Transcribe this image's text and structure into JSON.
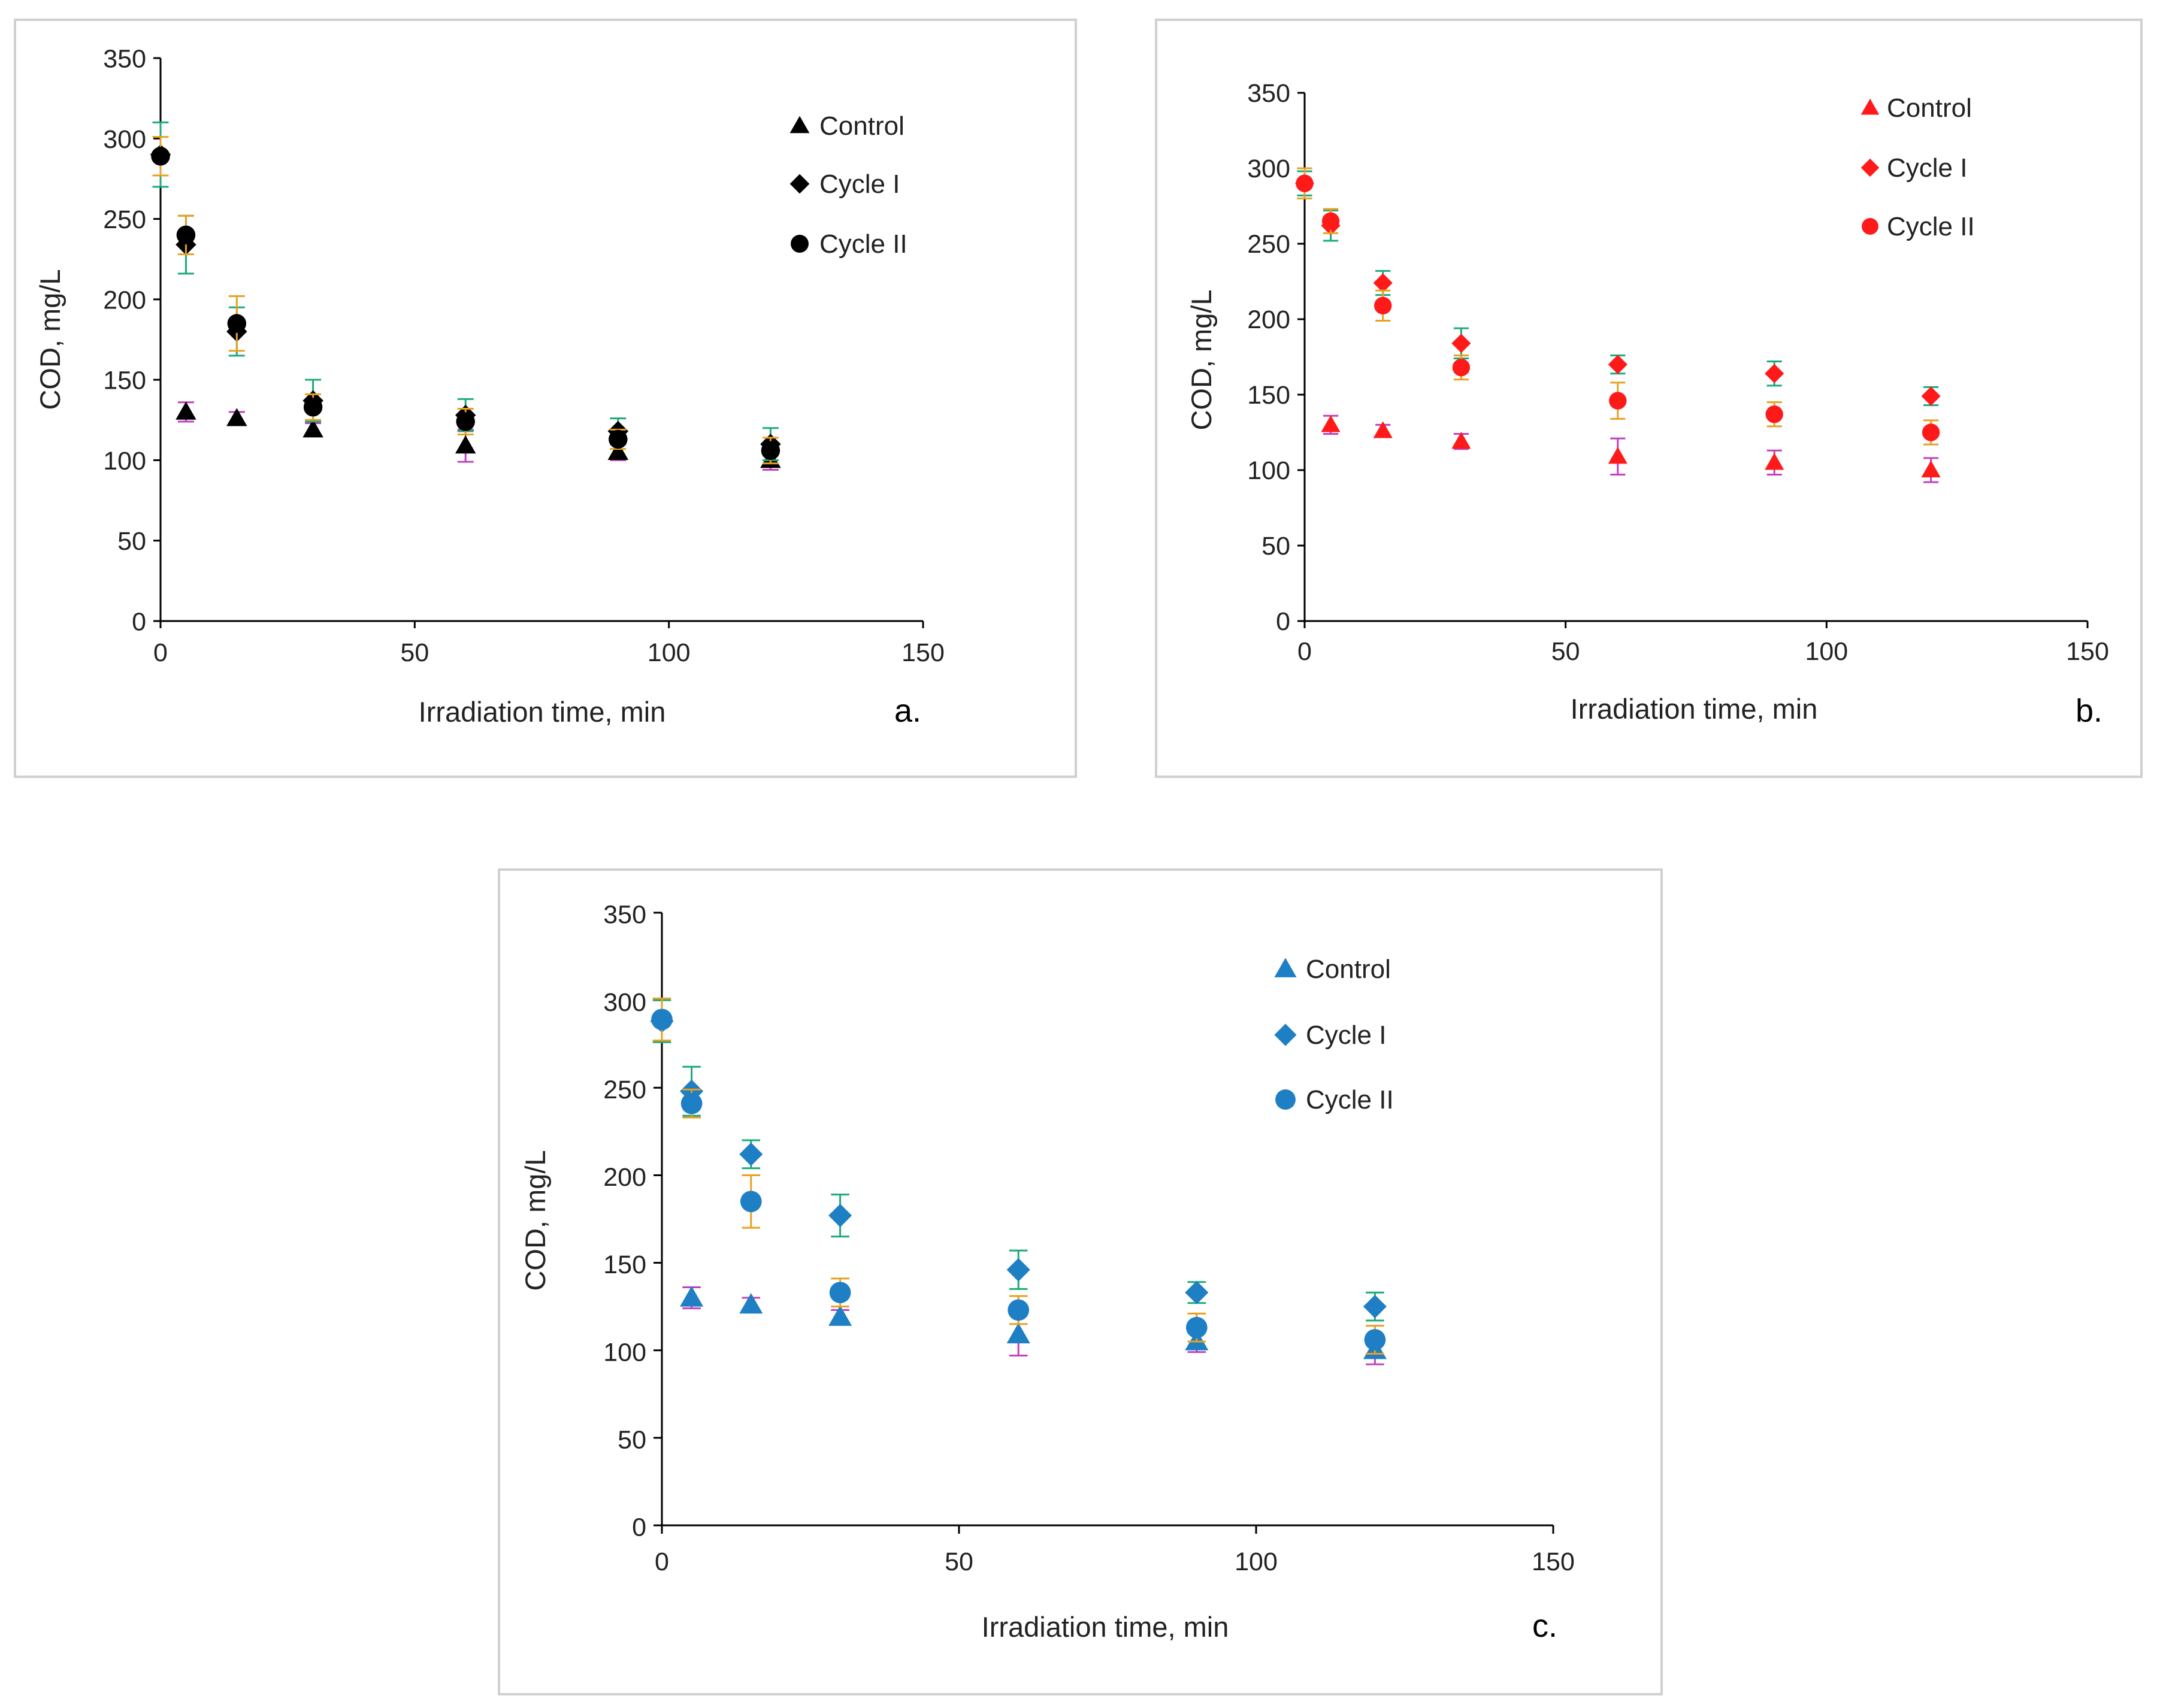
{
  "chart_data": [
    {
      "type": "scatter",
      "panel": "a.",
      "xlabel": "Irradiation time, min",
      "ylabel": "COD, mg/L",
      "xlim": [
        0,
        150
      ],
      "ylim": [
        0,
        350
      ],
      "xticks": [
        0,
        50,
        100,
        150
      ],
      "yticks": [
        0,
        50,
        100,
        150,
        200,
        250,
        300,
        350
      ],
      "legend_position": "top-right",
      "x": [
        0,
        5,
        15,
        30,
        60,
        90,
        120
      ],
      "series": [
        {
          "name": "Control",
          "marker": "triangle",
          "color": "#000000",
          "error_color": "#c040c0",
          "values": [
            null,
            130,
            126,
            119,
            109,
            105,
            100
          ],
          "errors": [
            null,
            6,
            4,
            4,
            10,
            5,
            6
          ]
        },
        {
          "name": "Cycle I",
          "marker": "diamond",
          "color": "#000000",
          "error_color": "#1aaa7a",
          "values": [
            290,
            234,
            180,
            137,
            128,
            118,
            110
          ],
          "errors": [
            20,
            18,
            15,
            13,
            10,
            8,
            10
          ]
        },
        {
          "name": "Cycle II",
          "marker": "circle",
          "color": "#000000",
          "error_color": "#e8a020",
          "values": [
            289,
            240,
            185,
            133,
            124,
            113,
            106
          ],
          "errors": [
            12,
            12,
            17,
            8,
            8,
            6,
            8
          ]
        }
      ]
    },
    {
      "type": "scatter",
      "panel": "b.",
      "xlabel": "Irradiation time, min",
      "ylabel": "COD, mg/L",
      "xlim": [
        0,
        150
      ],
      "ylim": [
        0,
        350
      ],
      "xticks": [
        0,
        50,
        100,
        150
      ],
      "yticks": [
        0,
        50,
        100,
        150,
        200,
        250,
        300,
        350
      ],
      "legend_position": "top-right",
      "x": [
        0,
        5,
        15,
        30,
        60,
        90,
        120
      ],
      "series": [
        {
          "name": "Control",
          "marker": "triangle",
          "color": "#ff1a1a",
          "error_color": "#c040c0",
          "values": [
            null,
            130,
            126,
            119,
            109,
            105,
            100
          ],
          "errors": [
            null,
            6,
            4,
            5,
            12,
            8,
            8
          ]
        },
        {
          "name": "Cycle I",
          "marker": "diamond",
          "color": "#ff1a1a",
          "error_color": "#1aaa7a",
          "values": [
            290,
            262,
            224,
            184,
            170,
            164,
            149
          ],
          "errors": [
            8,
            10,
            8,
            10,
            6,
            8,
            6
          ]
        },
        {
          "name": "Cycle II",
          "marker": "circle",
          "color": "#ff1a1a",
          "error_color": "#e8a020",
          "values": [
            290,
            265,
            209,
            168,
            146,
            137,
            125
          ],
          "errors": [
            10,
            8,
            10,
            8,
            12,
            8,
            8
          ]
        }
      ]
    },
    {
      "type": "scatter",
      "panel": "c.",
      "xlabel": "Irradiation time, min",
      "ylabel": "COD, mg/L",
      "xlim": [
        0,
        150
      ],
      "ylim": [
        0,
        350
      ],
      "xticks": [
        0,
        50,
        100,
        150
      ],
      "yticks": [
        0,
        50,
        100,
        150,
        200,
        250,
        300,
        350
      ],
      "legend_position": "top-right",
      "x": [
        0,
        5,
        15,
        30,
        60,
        90,
        120
      ],
      "series": [
        {
          "name": "Control",
          "marker": "triangle",
          "color": "#1f7fc4",
          "error_color": "#c040c0",
          "values": [
            null,
            130,
            126,
            119,
            109,
            105,
            100
          ],
          "errors": [
            null,
            6,
            4,
            4,
            12,
            6,
            8
          ]
        },
        {
          "name": "Cycle I",
          "marker": "diamond",
          "color": "#1f7fc4",
          "error_color": "#1aaa7a",
          "values": [
            288,
            248,
            212,
            177,
            146,
            133,
            125
          ],
          "errors": [
            12,
            14,
            8,
            12,
            11,
            6,
            8
          ]
        },
        {
          "name": "Cycle II",
          "marker": "circle",
          "color": "#1f7fc4",
          "error_color": "#e8a020",
          "values": [
            289,
            241,
            185,
            133,
            123,
            113,
            106
          ],
          "errors": [
            12,
            8,
            15,
            8,
            8,
            8,
            8
          ]
        }
      ]
    }
  ]
}
